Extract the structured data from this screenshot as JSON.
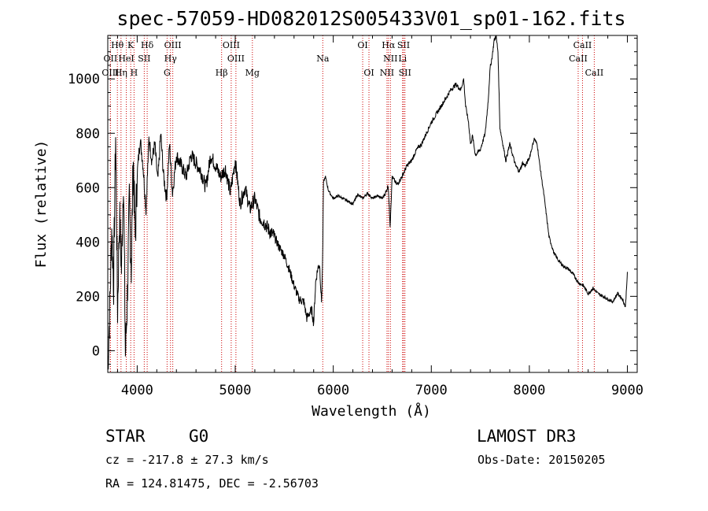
{
  "chart_data": {
    "type": "line",
    "title": "spec-57059-HD082012S005433V01_sp01-162.fits",
    "xlabel": "Wavelength (Å)",
    "ylabel": "Flux (relative)",
    "xlim": [
      3700,
      9100
    ],
    "ylim": [
      -80,
      1160
    ],
    "xticks": [
      4000,
      5000,
      6000,
      7000,
      8000,
      9000
    ],
    "yticks": [
      0,
      200,
      400,
      600,
      800,
      1000
    ],
    "grid": false,
    "series": [
      {
        "x": [
          3700,
          3720,
          3740,
          3760,
          3780,
          3800,
          3820,
          3840,
          3860,
          3880,
          3900,
          3920,
          3940,
          3960,
          3980,
          4000,
          4030,
          4060,
          4090,
          4120,
          4150,
          4180,
          4210,
          4240,
          4270,
          4300,
          4330,
          4360,
          4400,
          4450,
          4500,
          4550,
          4600,
          4650,
          4700,
          4750,
          4800,
          4850,
          4900,
          4950,
          5000,
          5050,
          5100,
          5150,
          5200,
          5250,
          5300,
          5350,
          5400,
          5450,
          5500,
          5550,
          5600,
          5650,
          5700,
          5730,
          5760,
          5780,
          5800,
          5820,
          5840,
          5860,
          5880,
          5890,
          5900,
          5920,
          5950,
          6000,
          6050,
          6100,
          6150,
          6200,
          6250,
          6300,
          6350,
          6400,
          6450,
          6500,
          6540,
          6560,
          6580,
          6600,
          6650,
          6700,
          6750,
          6800,
          6850,
          6900,
          6950,
          7000,
          7050,
          7100,
          7150,
          7200,
          7250,
          7300,
          7330,
          7350,
          7380,
          7400,
          7420,
          7450,
          7500,
          7550,
          7580,
          7600,
          7620,
          7640,
          7660,
          7680,
          7700,
          7730,
          7760,
          7800,
          7830,
          7860,
          7900,
          7930,
          7960,
          8000,
          8050,
          8080,
          8100,
          8150,
          8200,
          8250,
          8300,
          8350,
          8400,
          8450,
          8500,
          8550,
          8600,
          8650,
          8700,
          8750,
          8800,
          8850,
          8900,
          8950,
          8980,
          9000
        ],
        "values": [
          -60,
          150,
          450,
          250,
          800,
          150,
          500,
          300,
          650,
          -20,
          200,
          550,
          300,
          720,
          400,
          650,
          780,
          680,
          520,
          780,
          700,
          760,
          620,
          800,
          640,
          560,
          760,
          580,
          720,
          680,
          640,
          720,
          690,
          660,
          600,
          720,
          680,
          640,
          670,
          580,
          700,
          540,
          600,
          520,
          560,
          490,
          470,
          440,
          420,
          380,
          350,
          300,
          240,
          190,
          180,
          120,
          140,
          150,
          100,
          250,
          300,
          320,
          180,
          300,
          620,
          640,
          590,
          560,
          570,
          560,
          550,
          540,
          575,
          560,
          580,
          560,
          570,
          560,
          585,
          610,
          460,
          640,
          610,
          640,
          680,
          700,
          740,
          760,
          800,
          840,
          870,
          900,
          930,
          960,
          980,
          960,
          1000,
          900,
          840,
          760,
          790,
          720,
          740,
          800,
          920,
          1040,
          1080,
          1140,
          1160,
          1100,
          820,
          760,
          700,
          760,
          720,
          680,
          660,
          690,
          680,
          710,
          780,
          760,
          700,
          570,
          420,
          360,
          330,
          310,
          300,
          280,
          250,
          240,
          210,
          230,
          210,
          200,
          190,
          180,
          210,
          190,
          160,
          290
        ]
      }
    ],
    "spectral_lines": [
      {
        "label": "Hθ",
        "wavelength": 3798,
        "row": 1
      },
      {
        "label": "K",
        "wavelength": 3934,
        "row": 1
      },
      {
        "label": "Hδ",
        "wavelength": 4102,
        "row": 1
      },
      {
        "label": "OIII",
        "wavelength": 4363,
        "row": 1
      },
      {
        "label": "OIII",
        "wavelength": 4959,
        "row": 1
      },
      {
        "label": "OI",
        "wavelength": 6300,
        "row": 1
      },
      {
        "label": "Hα",
        "wavelength": 6563,
        "row": 1
      },
      {
        "label": "SII",
        "wavelength": 6717,
        "row": 1
      },
      {
        "label": "CaII",
        "wavelength": 8542,
        "row": 1
      },
      {
        "label": "OII",
        "wavelength": 3727,
        "row": 2
      },
      {
        "label": "HeI",
        "wavelength": 3889,
        "row": 2
      },
      {
        "label": "SII",
        "wavelength": 4072,
        "row": 2
      },
      {
        "label": "Hγ",
        "wavelength": 4340,
        "row": 2
      },
      {
        "label": "OIII",
        "wavelength": 5007,
        "row": 2
      },
      {
        "label": "NII",
        "wavelength": 6583,
        "row": 2
      },
      {
        "label": "Li",
        "wavelength": 6707,
        "row": 2
      },
      {
        "label": "CaII",
        "wavelength": 8498,
        "row": 2
      },
      {
        "label": "OIII",
        "wavelength": 3727,
        "row": 3
      },
      {
        "label": "Hη",
        "wavelength": 3835,
        "row": 3
      },
      {
        "label": "H",
        "wavelength": 3968,
        "row": 3
      },
      {
        "label": "G",
        "wavelength": 4305,
        "row": 3
      },
      {
        "label": "Hβ",
        "wavelength": 4861,
        "row": 3
      },
      {
        "label": "Mg",
        "wavelength": 5175,
        "row": 3
      },
      {
        "label": "Na",
        "wavelength": 5893,
        "row": 2
      },
      {
        "label": "OI",
        "wavelength": 6364,
        "row": 3
      },
      {
        "label": "NII",
        "wavelength": 6548,
        "row": 3
      },
      {
        "label": "SII",
        "wavelength": 6731,
        "row": 3
      },
      {
        "label": "CaII",
        "wavelength": 8662,
        "row": 3
      }
    ],
    "colors": {
      "spectrum": "#000000",
      "lines": "#cc0000",
      "axes": "#000000"
    }
  },
  "info": {
    "object_class": "STAR",
    "subclass": "G0",
    "survey": "LAMOST DR3",
    "cz": "cz = -217.8 ± 27.3 km/s",
    "obs_date": "Obs-Date: 20150205",
    "coords": "RA = 124.81475, DEC =  -2.56703"
  }
}
